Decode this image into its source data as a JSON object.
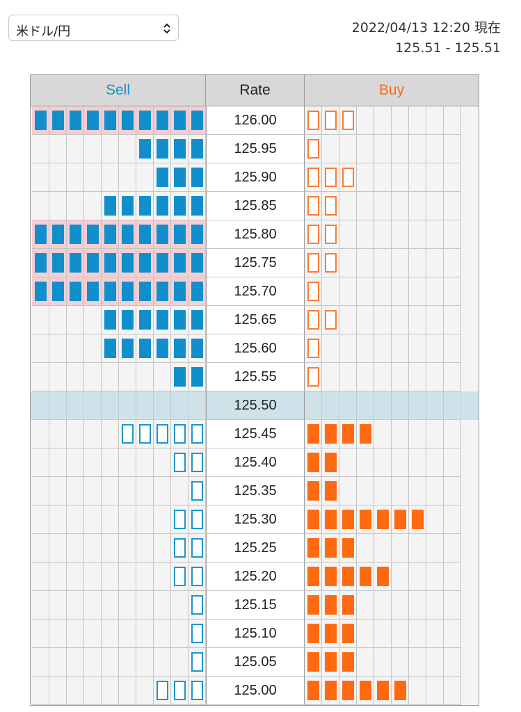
{
  "selector": {
    "value": "米ドル/円"
  },
  "header": {
    "timestamp": "2022/04/13 12:20 現在",
    "range": "125.51 - 125.51"
  },
  "columns": {
    "sell": "Sell",
    "rate": "Rate",
    "buy": "Buy"
  },
  "colors": {
    "sell": "#118fcc",
    "buy": "#ff6a10",
    "highlight": "#f5ced3",
    "current_row": "#cfe2ea"
  },
  "rows": [
    {
      "rate": "126.00",
      "sell": 10,
      "buy": 3,
      "highlight": true
    },
    {
      "rate": "125.95",
      "sell": 4,
      "buy": 1
    },
    {
      "rate": "125.90",
      "sell": 3,
      "buy": 3
    },
    {
      "rate": "125.85",
      "sell": 6,
      "buy": 2
    },
    {
      "rate": "125.80",
      "sell": 10,
      "buy": 2,
      "highlight": true
    },
    {
      "rate": "125.75",
      "sell": 10,
      "buy": 2,
      "highlight": true
    },
    {
      "rate": "125.70",
      "sell": 10,
      "buy": 1,
      "highlight": true
    },
    {
      "rate": "125.65",
      "sell": 6,
      "buy": 2
    },
    {
      "rate": "125.60",
      "sell": 6,
      "buy": 1
    },
    {
      "rate": "125.55",
      "sell": 2,
      "buy": 1
    },
    {
      "rate": "125.50",
      "sell": 0,
      "buy": 0,
      "current": true
    },
    {
      "rate": "125.45",
      "sell": 5,
      "buy": 4
    },
    {
      "rate": "125.40",
      "sell": 2,
      "buy": 2
    },
    {
      "rate": "125.35",
      "sell": 1,
      "buy": 2
    },
    {
      "rate": "125.30",
      "sell": 2,
      "buy": 7
    },
    {
      "rate": "125.25",
      "sell": 2,
      "buy": 3
    },
    {
      "rate": "125.20",
      "sell": 2,
      "buy": 5
    },
    {
      "rate": "125.15",
      "sell": 1,
      "buy": 3
    },
    {
      "rate": "125.10",
      "sell": 1,
      "buy": 3
    },
    {
      "rate": "125.05",
      "sell": 1,
      "buy": 3
    },
    {
      "rate": "125.00",
      "sell": 3,
      "buy": 6
    }
  ]
}
